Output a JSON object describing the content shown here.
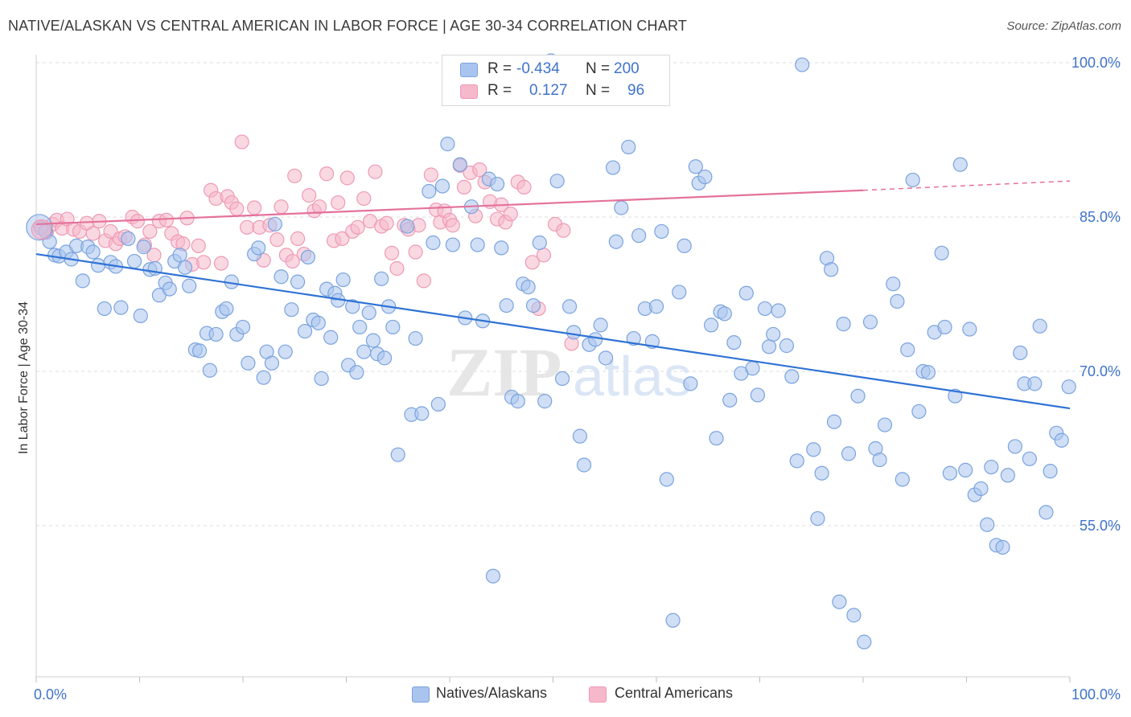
{
  "title": "NATIVE/ALASKAN VS CENTRAL AMERICAN IN LABOR FORCE | AGE 30-34 CORRELATION CHART",
  "source": "Source: ZipAtlas.com",
  "watermark": "ZIPatlas",
  "legend": {
    "rows": [
      {
        "r_label": "R =",
        "r_value": "-0.434",
        "n_label": "N =",
        "n_value": "200"
      },
      {
        "r_label": "R =",
        "r_value": "0.127",
        "n_label": "N =",
        "n_value": "96"
      }
    ]
  },
  "bottom_legend": {
    "series1": "Natives/Alaskans",
    "series2": "Central Americans"
  },
  "colors": {
    "blue_fill": "#a9c4ee",
    "blue_stroke": "#7aa3de",
    "blue_line": "#2f72d4",
    "pink_fill": "#f6b8cb",
    "pink_stroke": "#ee9ab4",
    "pink_line": "#e4729b",
    "axis_text": "#3f73c9",
    "grid": "#dddddd"
  },
  "chart_data": {
    "type": "scatter",
    "title": "NATIVE/ALASKAN VS CENTRAL AMERICAN IN LABOR FORCE | AGE 30-34 CORRELATION CHART",
    "xlabel": "",
    "ylabel": "In Labor Force | Age 30-34",
    "xlim": [
      0,
      100
    ],
    "ylim": [
      38,
      101.5
    ],
    "x_tick_labels": [
      "0.0%",
      "100.0%"
    ],
    "y_ticks": [
      55,
      70,
      85,
      100
    ],
    "y_tick_labels": [
      "55.0%",
      "70.0%",
      "85.0%",
      "100.0%"
    ],
    "grid": true,
    "series": [
      {
        "name": "Natives/Alaskans",
        "r": -0.434,
        "n": 200,
        "trend": {
          "x": [
            0,
            100
          ],
          "y": [
            81.4,
            66.4
          ]
        },
        "points": [
          [
            0.5,
            83.9
          ],
          [
            0.9,
            83.6
          ],
          [
            1.3,
            82.6
          ],
          [
            1.8,
            81.3
          ],
          [
            2.2,
            81.2
          ],
          [
            2.9,
            81.6
          ],
          [
            3.4,
            80.9
          ],
          [
            3.9,
            82.2
          ],
          [
            4.5,
            78.8
          ],
          [
            5.0,
            82.1
          ],
          [
            5.5,
            81.6
          ],
          [
            6.0,
            80.3
          ],
          [
            6.6,
            76.1
          ],
          [
            7.2,
            80.6
          ],
          [
            7.7,
            80.2
          ],
          [
            8.2,
            76.2
          ],
          [
            8.9,
            82.9
          ],
          [
            9.5,
            80.7
          ],
          [
            10.1,
            75.4
          ],
          [
            10.4,
            82.1
          ],
          [
            11.0,
            79.9
          ],
          [
            11.5,
            80.0
          ],
          [
            11.9,
            77.4
          ],
          [
            12.5,
            78.6
          ],
          [
            12.9,
            78.0
          ],
          [
            13.4,
            80.7
          ],
          [
            13.9,
            81.3
          ],
          [
            14.4,
            80.1
          ],
          [
            14.8,
            78.3
          ],
          [
            15.4,
            72.1
          ],
          [
            15.8,
            72.0
          ],
          [
            16.5,
            73.7
          ],
          [
            16.8,
            70.1
          ],
          [
            17.4,
            73.6
          ],
          [
            18.0,
            75.8
          ],
          [
            18.4,
            76.1
          ],
          [
            18.9,
            78.7
          ],
          [
            19.4,
            73.6
          ],
          [
            20.0,
            74.3
          ],
          [
            20.5,
            70.8
          ],
          [
            21.1,
            81.4
          ],
          [
            21.5,
            82.0
          ],
          [
            22.0,
            69.4
          ],
          [
            22.3,
            71.9
          ],
          [
            22.8,
            70.8
          ],
          [
            23.1,
            84.3
          ],
          [
            23.7,
            79.2
          ],
          [
            24.1,
            71.9
          ],
          [
            24.7,
            76.0
          ],
          [
            25.3,
            78.7
          ],
          [
            26.0,
            73.9
          ],
          [
            26.3,
            81.1
          ],
          [
            26.8,
            75.0
          ],
          [
            27.3,
            74.7
          ],
          [
            27.6,
            69.3
          ],
          [
            28.1,
            78.0
          ],
          [
            28.5,
            73.3
          ],
          [
            28.9,
            77.6
          ],
          [
            29.2,
            76.9
          ],
          [
            29.7,
            78.9
          ],
          [
            30.2,
            70.6
          ],
          [
            30.6,
            76.3
          ],
          [
            31.0,
            69.9
          ],
          [
            31.3,
            74.3
          ],
          [
            31.7,
            71.9
          ],
          [
            32.2,
            75.7
          ],
          [
            32.6,
            73.0
          ],
          [
            33.0,
            71.7
          ],
          [
            33.4,
            79.0
          ],
          [
            33.7,
            71.3
          ],
          [
            34.1,
            76.3
          ],
          [
            34.5,
            74.3
          ],
          [
            35.0,
            61.9
          ],
          [
            35.9,
            84.1
          ],
          [
            36.3,
            65.8
          ],
          [
            36.7,
            73.2
          ],
          [
            37.3,
            65.9
          ],
          [
            38.0,
            87.5
          ],
          [
            38.4,
            82.5
          ],
          [
            38.9,
            66.8
          ],
          [
            39.3,
            88.0
          ],
          [
            39.8,
            92.1
          ],
          [
            40.3,
            82.3
          ],
          [
            41.0,
            90.1
          ],
          [
            41.5,
            75.2
          ],
          [
            42.1,
            86.0
          ],
          [
            42.7,
            82.3
          ],
          [
            43.2,
            74.9
          ],
          [
            43.8,
            88.7
          ],
          [
            44.2,
            50.1
          ],
          [
            44.6,
            88.2
          ],
          [
            45.0,
            82.0
          ],
          [
            45.5,
            76.4
          ],
          [
            46.0,
            67.5
          ],
          [
            46.6,
            67.1
          ],
          [
            47.1,
            78.5
          ],
          [
            47.6,
            78.2
          ],
          [
            48.1,
            76.4
          ],
          [
            48.7,
            82.5
          ],
          [
            49.2,
            67.1
          ],
          [
            49.8,
            100.2
          ],
          [
            50.4,
            88.5
          ],
          [
            50.9,
            69.3
          ],
          [
            51.6,
            76.3
          ],
          [
            52.0,
            73.8
          ],
          [
            52.6,
            63.7
          ],
          [
            53.0,
            60.9
          ],
          [
            53.5,
            72.6
          ],
          [
            54.1,
            73.1
          ],
          [
            54.6,
            74.5
          ],
          [
            55.1,
            71.3
          ],
          [
            55.8,
            89.8
          ],
          [
            56.1,
            82.6
          ],
          [
            56.6,
            85.9
          ],
          [
            57.3,
            91.8
          ],
          [
            57.8,
            73.2
          ],
          [
            58.3,
            83.2
          ],
          [
            58.9,
            76.1
          ],
          [
            59.6,
            72.9
          ],
          [
            60.0,
            76.3
          ],
          [
            60.5,
            83.6
          ],
          [
            61.0,
            59.5
          ],
          [
            61.6,
            45.8
          ],
          [
            62.2,
            77.7
          ],
          [
            62.7,
            82.2
          ],
          [
            63.3,
            68.8
          ],
          [
            63.8,
            89.9
          ],
          [
            64.1,
            88.3
          ],
          [
            64.7,
            88.9
          ],
          [
            65.3,
            74.5
          ],
          [
            65.8,
            63.5
          ],
          [
            66.2,
            75.8
          ],
          [
            66.6,
            75.6
          ],
          [
            67.1,
            67.2
          ],
          [
            67.5,
            72.8
          ],
          [
            68.2,
            69.8
          ],
          [
            68.7,
            77.6
          ],
          [
            69.3,
            70.3
          ],
          [
            69.8,
            67.7
          ],
          [
            70.5,
            76.1
          ],
          [
            70.9,
            72.4
          ],
          [
            71.3,
            73.6
          ],
          [
            71.8,
            75.9
          ],
          [
            72.6,
            72.5
          ],
          [
            73.1,
            69.5
          ],
          [
            73.6,
            61.3
          ],
          [
            74.1,
            99.8
          ],
          [
            75.2,
            62.4
          ],
          [
            75.6,
            55.7
          ],
          [
            76.0,
            60.1
          ],
          [
            76.5,
            81.0
          ],
          [
            76.9,
            79.9
          ],
          [
            77.2,
            65.1
          ],
          [
            77.7,
            47.6
          ],
          [
            78.1,
            74.6
          ],
          [
            78.6,
            62.0
          ],
          [
            79.1,
            46.3
          ],
          [
            79.5,
            67.6
          ],
          [
            80.1,
            43.7
          ],
          [
            80.7,
            74.8
          ],
          [
            81.2,
            62.5
          ],
          [
            81.6,
            61.4
          ],
          [
            82.1,
            64.8
          ],
          [
            82.9,
            78.5
          ],
          [
            83.3,
            76.8
          ],
          [
            83.8,
            59.5
          ],
          [
            84.3,
            72.1
          ],
          [
            84.8,
            88.6
          ],
          [
            85.4,
            66.1
          ],
          [
            85.8,
            70.0
          ],
          [
            86.3,
            69.9
          ],
          [
            86.9,
            73.8
          ],
          [
            87.6,
            81.5
          ],
          [
            87.9,
            74.3
          ],
          [
            88.4,
            60.1
          ],
          [
            88.9,
            67.6
          ],
          [
            89.4,
            90.1
          ],
          [
            89.9,
            60.4
          ],
          [
            90.3,
            74.1
          ],
          [
            90.8,
            58.0
          ],
          [
            91.4,
            58.6
          ],
          [
            92.0,
            55.1
          ],
          [
            92.4,
            60.7
          ],
          [
            92.9,
            53.1
          ],
          [
            93.5,
            52.9
          ],
          [
            94.0,
            59.9
          ],
          [
            94.7,
            62.7
          ],
          [
            95.2,
            71.8
          ],
          [
            95.6,
            68.8
          ],
          [
            96.1,
            61.5
          ],
          [
            96.6,
            68.8
          ],
          [
            97.1,
            74.4
          ],
          [
            97.7,
            56.3
          ],
          [
            98.1,
            60.3
          ],
          [
            98.7,
            64.0
          ],
          [
            99.2,
            63.3
          ],
          [
            99.9,
            68.5
          ]
        ]
      },
      {
        "name": "Central Americans",
        "r": 0.127,
        "n": 96,
        "trend": {
          "x": [
            0,
            80
          ],
          "y": [
            84.3,
            87.6
          ]
        },
        "trend_dashed": {
          "x": [
            80,
            100
          ],
          "y": [
            87.6,
            88.5
          ]
        },
        "points": [
          [
            0.4,
            84.0
          ],
          [
            1.0,
            83.5
          ],
          [
            1.6,
            84.3
          ],
          [
            2.0,
            84.7
          ],
          [
            2.5,
            83.9
          ],
          [
            3.0,
            84.8
          ],
          [
            3.6,
            83.8
          ],
          [
            4.2,
            83.6
          ],
          [
            4.9,
            84.4
          ],
          [
            5.5,
            83.4
          ],
          [
            6.1,
            84.6
          ],
          [
            6.7,
            82.7
          ],
          [
            7.2,
            83.6
          ],
          [
            7.7,
            82.4
          ],
          [
            8.1,
            82.9
          ],
          [
            8.6,
            83.1
          ],
          [
            9.3,
            85.0
          ],
          [
            9.8,
            84.6
          ],
          [
            10.5,
            82.3
          ],
          [
            11.0,
            83.6
          ],
          [
            11.4,
            81.3
          ],
          [
            11.9,
            84.6
          ],
          [
            12.6,
            84.7
          ],
          [
            13.1,
            83.4
          ],
          [
            13.7,
            82.6
          ],
          [
            14.2,
            82.4
          ],
          [
            14.6,
            84.9
          ],
          [
            15.1,
            80.4
          ],
          [
            15.7,
            82.2
          ],
          [
            16.2,
            80.6
          ],
          [
            16.9,
            87.6
          ],
          [
            17.4,
            86.8
          ],
          [
            17.9,
            80.5
          ],
          [
            18.5,
            87.0
          ],
          [
            18.9,
            86.4
          ],
          [
            19.4,
            85.8
          ],
          [
            19.9,
            92.3
          ],
          [
            20.4,
            84.0
          ],
          [
            21.1,
            85.9
          ],
          [
            21.6,
            84.0
          ],
          [
            22.0,
            80.8
          ],
          [
            22.6,
            84.2
          ],
          [
            23.3,
            82.8
          ],
          [
            23.7,
            86.0
          ],
          [
            24.2,
            81.3
          ],
          [
            24.8,
            80.7
          ],
          [
            25.0,
            89.0
          ],
          [
            25.3,
            82.9
          ],
          [
            25.9,
            81.4
          ],
          [
            26.4,
            87.1
          ],
          [
            26.9,
            85.6
          ],
          [
            27.4,
            86.0
          ],
          [
            28.1,
            89.2
          ],
          [
            28.8,
            82.7
          ],
          [
            29.2,
            86.4
          ],
          [
            29.6,
            82.9
          ],
          [
            30.1,
            88.8
          ],
          [
            30.6,
            83.6
          ],
          [
            31.1,
            84.0
          ],
          [
            31.7,
            86.8
          ],
          [
            32.3,
            84.6
          ],
          [
            32.8,
            89.4
          ],
          [
            33.4,
            84.1
          ],
          [
            33.9,
            84.4
          ],
          [
            34.4,
            81.5
          ],
          [
            34.9,
            80.0
          ],
          [
            35.6,
            84.2
          ],
          [
            36.0,
            83.8
          ],
          [
            36.7,
            81.6
          ],
          [
            37.0,
            84.2
          ],
          [
            37.5,
            78.8
          ],
          [
            38.2,
            89.1
          ],
          [
            38.7,
            85.7
          ],
          [
            39.1,
            84.5
          ],
          [
            39.5,
            85.6
          ],
          [
            40.0,
            84.7
          ],
          [
            40.3,
            84.2
          ],
          [
            41.0,
            90.0
          ],
          [
            41.4,
            87.9
          ],
          [
            42.0,
            89.3
          ],
          [
            42.5,
            85.1
          ],
          [
            42.9,
            89.6
          ],
          [
            43.4,
            88.4
          ],
          [
            43.9,
            86.5
          ],
          [
            44.6,
            84.8
          ],
          [
            45.0,
            86.2
          ],
          [
            45.4,
            84.5
          ],
          [
            45.9,
            85.3
          ],
          [
            46.6,
            88.4
          ],
          [
            47.2,
            87.9
          ],
          [
            48.0,
            80.6
          ],
          [
            48.6,
            76.1
          ],
          [
            49.1,
            81.3
          ],
          [
            50.2,
            84.3
          ],
          [
            51.0,
            83.7
          ],
          [
            51.8,
            72.7
          ]
        ]
      }
    ]
  }
}
